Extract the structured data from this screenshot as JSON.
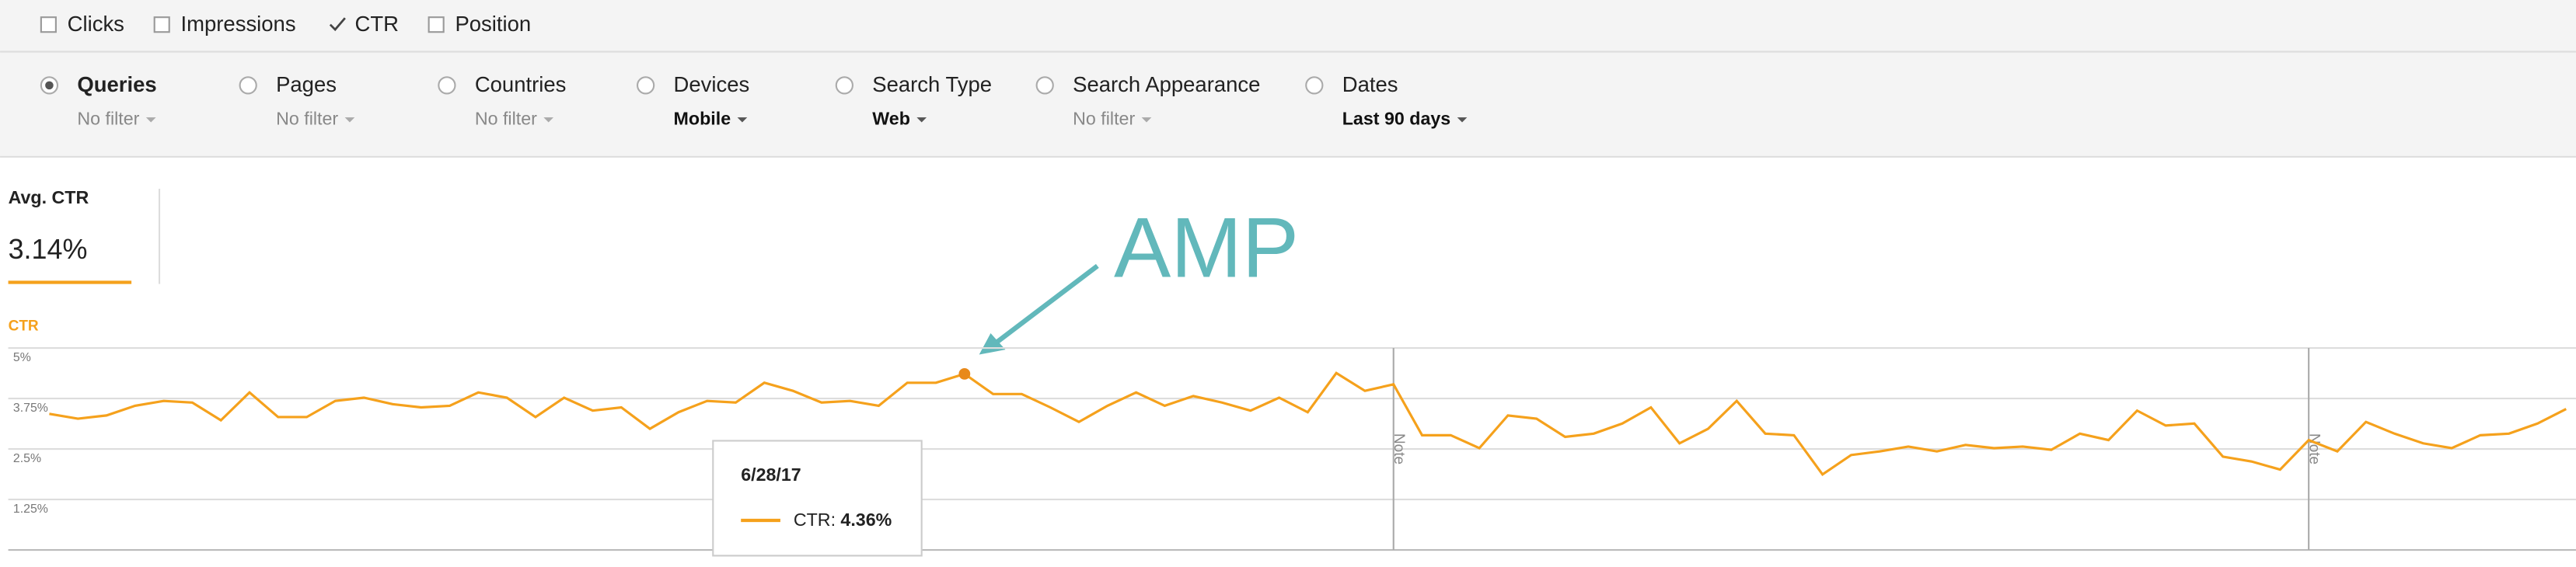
{
  "toolbar": {
    "metrics": [
      {
        "label": "Clicks",
        "checked": false
      },
      {
        "label": "Impressions",
        "checked": false
      },
      {
        "label": "CTR",
        "checked": true
      },
      {
        "label": "Position",
        "checked": false
      }
    ]
  },
  "filters": [
    {
      "label": "Queries",
      "value": "No filter",
      "selected": true,
      "active": false
    },
    {
      "label": "Pages",
      "value": "No filter",
      "selected": false,
      "active": false
    },
    {
      "label": "Countries",
      "value": "No filter",
      "selected": false,
      "active": false
    },
    {
      "label": "Devices",
      "value": "Mobile",
      "selected": false,
      "active": true
    },
    {
      "label": "Search Type",
      "value": "Web",
      "selected": false,
      "active": true
    },
    {
      "label": "Search Appearance",
      "value": "No filter",
      "selected": false,
      "active": false
    },
    {
      "label": "Dates",
      "value": "Last 90 days",
      "selected": false,
      "active": true
    }
  ],
  "summary": {
    "label": "Avg. CTR",
    "value": "3.14%"
  },
  "annotation": "AMP",
  "chart_data": {
    "type": "line",
    "y_label": "CTR",
    "tooltip_label": "CTR:",
    "categories": [
      null,
      null,
      null,
      null,
      null,
      null,
      null,
      null,
      null,
      null,
      null,
      null,
      null,
      null,
      null,
      null,
      null,
      null,
      null,
      null,
      null,
      null,
      null,
      null,
      null,
      null,
      null,
      null,
      null,
      null,
      null,
      null,
      "6/28/17",
      null,
      null,
      null,
      null,
      null,
      null,
      null,
      null,
      null,
      null,
      null,
      null,
      null,
      null,
      null,
      null,
      null,
      null,
      null,
      null,
      null,
      null,
      null,
      null,
      null,
      null,
      null,
      null,
      null,
      null,
      null,
      null,
      null,
      null,
      null,
      null,
      null,
      null,
      null,
      null,
      null,
      null,
      null,
      null,
      null,
      null,
      null,
      null,
      null,
      null,
      null,
      null,
      null,
      null,
      null,
      null
    ],
    "series": [
      {
        "name": "CTR",
        "color": "#f5a11c",
        "values": [
          3.37,
          3.25,
          3.33,
          3.57,
          3.69,
          3.65,
          3.21,
          3.9,
          3.29,
          3.29,
          3.69,
          3.77,
          3.61,
          3.53,
          3.57,
          3.9,
          3.77,
          3.29,
          3.77,
          3.45,
          3.53,
          3.0,
          3.41,
          3.69,
          3.65,
          4.14,
          3.94,
          3.65,
          3.69,
          3.57,
          4.14,
          4.14,
          4.36,
          3.86,
          3.86,
          3.53,
          3.17,
          3.57,
          3.9,
          3.57,
          3.81,
          3.65,
          3.45,
          3.77,
          3.41,
          4.38,
          3.94,
          4.1,
          2.84,
          2.84,
          2.52,
          3.33,
          3.25,
          2.8,
          2.88,
          3.13,
          3.53,
          2.64,
          3.0,
          3.69,
          2.88,
          2.84,
          1.87,
          2.35,
          2.44,
          2.56,
          2.44,
          2.6,
          2.52,
          2.56,
          2.48,
          2.88,
          2.72,
          3.45,
          3.08,
          3.13,
          2.31,
          2.19,
          1.99,
          2.72,
          2.44,
          3.17,
          2.88,
          2.64,
          2.52,
          2.84,
          2.88,
          3.13,
          3.49
        ],
        "value_labels": [
          null,
          null,
          null,
          null,
          null,
          null,
          null,
          null,
          null,
          null,
          null,
          null,
          null,
          null,
          null,
          null,
          null,
          null,
          null,
          null,
          null,
          null,
          null,
          null,
          null,
          null,
          null,
          null,
          null,
          null,
          null,
          null,
          "4.36%",
          null,
          null,
          null,
          null,
          null,
          null,
          null,
          null,
          null,
          null,
          null,
          null,
          null,
          null,
          null,
          null,
          null,
          null,
          null,
          null,
          null,
          null,
          null,
          null,
          null,
          null,
          null,
          null,
          null,
          null,
          null,
          null,
          null,
          null,
          null,
          null,
          null,
          null,
          null,
          null,
          null,
          null,
          null,
          null,
          null,
          null,
          null,
          null,
          null,
          null,
          null,
          null,
          null,
          null,
          null,
          null
        ]
      }
    ],
    "ylim": [
      0,
      5
    ],
    "yticks": [
      {
        "value": 1.25,
        "label": "1.25%"
      },
      {
        "value": 2.5,
        "label": "2.5%"
      },
      {
        "value": 3.75,
        "label": "3.75%"
      },
      {
        "value": 5,
        "label": "5%"
      }
    ],
    "grid": true,
    "notes": [
      "Note",
      "Note"
    ]
  }
}
